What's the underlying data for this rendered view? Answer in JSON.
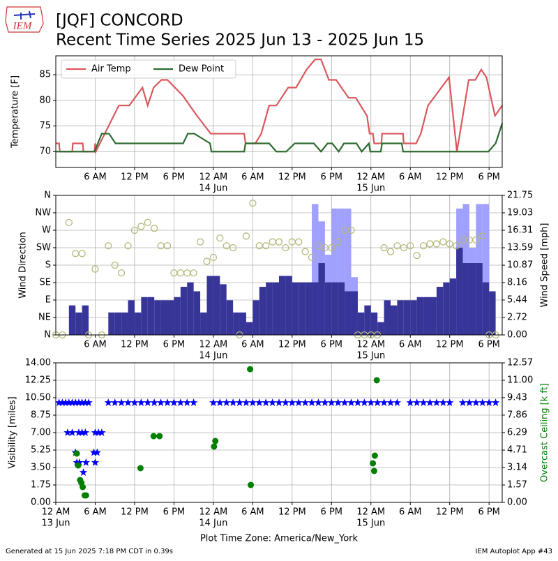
{
  "logo": "IEM",
  "title": [
    "[JQF] CONCORD",
    "Recent Time Series 2025 Jun 13 - 2025 Jun 15"
  ],
  "footer": {
    "left": "Generated at 15 Jun 2025 7:18 PM CDT in 0.39s",
    "right": "IEM Autoplot App #43"
  },
  "chart_data": [
    {
      "type": "line",
      "ylabel": "Temperature [F]",
      "grid": true,
      "legend": "upper left",
      "xlim": [
        0,
        68
      ],
      "ylim": [
        66.9,
        88.7
      ],
      "yticks": [
        70,
        75,
        80,
        85
      ],
      "xticks": [
        {
          "value": 6,
          "label": "6 AM"
        },
        {
          "value": 12,
          "label": "12 PM"
        },
        {
          "value": 18,
          "label": "6 PM"
        },
        {
          "value": 24,
          "label": "12 AM"
        },
        {
          "value": 30,
          "label": "6 AM"
        },
        {
          "value": 36,
          "label": "12 PM"
        },
        {
          "value": 42,
          "label": "6 PM"
        },
        {
          "value": 48,
          "label": "12 AM"
        },
        {
          "value": 54,
          "label": "6 AM"
        },
        {
          "value": 60,
          "label": "12 PM"
        },
        {
          "value": 66,
          "label": "6 PM"
        }
      ],
      "xdates": [
        {
          "value": 24,
          "label": "14 Jun"
        },
        {
          "value": 48,
          "label": "15 Jun"
        }
      ],
      "series": [
        {
          "name": "Air Temp",
          "type": "line",
          "axis": "y",
          "color": "#d9585c",
          "x": [
            0,
            0.5,
            0.6,
            2.5,
            2.6,
            4.1,
            4.2,
            5.9,
            6,
            6.1,
            9.6,
            11.2,
            13.2,
            14,
            14.9,
            16.1,
            17,
            19.3,
            21.5,
            23.6,
            28.7,
            28.9,
            30.4,
            31.3,
            32.5,
            33.6,
            35.4,
            36.6,
            38.2,
            39.5,
            40.4,
            41.6,
            42.7,
            44.6,
            45.7,
            47.4,
            47.8,
            48.3,
            48.5,
            49.6,
            49.7,
            52.9,
            53,
            54.9,
            55.6,
            56.7,
            59.9,
            61.1,
            62.9,
            63.9,
            64.8,
            65.6,
            66.9,
            68
          ],
          "values": [
            71.6,
            71.6,
            70,
            70,
            71.6,
            71.6,
            70,
            70,
            71.6,
            70,
            79,
            79,
            82.5,
            79,
            82.5,
            84,
            84,
            81,
            77,
            73.5,
            73.5,
            71.6,
            71.6,
            73.5,
            79,
            79,
            82.5,
            82.5,
            86,
            88,
            88,
            84,
            84,
            80.5,
            80.5,
            77,
            73.5,
            73.5,
            71.6,
            71.6,
            73.5,
            73.5,
            71.6,
            71.6,
            73.5,
            79,
            84.5,
            70,
            84,
            84,
            86,
            84.5,
            77,
            79
          ]
        },
        {
          "name": "Dew Point",
          "type": "line",
          "axis": "y",
          "color": "#2e6b30",
          "x": [
            0,
            5.9,
            7,
            8.1,
            9.1,
            19.4,
            20.1,
            21.1,
            23.5,
            23.7,
            28.7,
            28.9,
            30.2,
            32.5,
            33.6,
            35.1,
            36.4,
            39.3,
            40.4,
            41.4,
            42.1,
            43.1,
            43.9,
            45.8,
            46.6,
            47.7,
            47.9,
            49.5,
            49.7,
            52.7,
            52.9,
            65.9,
            67,
            68
          ],
          "values": [
            70,
            70,
            73.5,
            73.5,
            71.6,
            71.6,
            73.5,
            73.5,
            71.6,
            70,
            70,
            71.6,
            71.6,
            71.6,
            70,
            70,
            71.6,
            71.6,
            70,
            71.6,
            71.6,
            70,
            71.6,
            71.6,
            70,
            71.6,
            70,
            70,
            71.6,
            71.6,
            70,
            70,
            71.6,
            75.5
          ]
        }
      ]
    },
    {
      "type": "combo",
      "ylabel": "Wind Direction",
      "y2label": "Wind Speed [mph]",
      "grid": true,
      "xlim": [
        0,
        68
      ],
      "ylim": [
        0,
        360
      ],
      "yticks": [
        {
          "value": 0,
          "label": "N"
        },
        {
          "value": 45,
          "label": "NE"
        },
        {
          "value": 90,
          "label": "E"
        },
        {
          "value": 135,
          "label": "SE"
        },
        {
          "value": 180,
          "label": "S"
        },
        {
          "value": 225,
          "label": "SW"
        },
        {
          "value": 270,
          "label": "W"
        },
        {
          "value": 315,
          "label": "NW"
        },
        {
          "value": 360,
          "label": "N"
        }
      ],
      "y2lim": [
        0,
        21.75
      ],
      "y2ticks": [
        {
          "value": 0,
          "label": "0.00"
        },
        2.72,
        5.44,
        8.16,
        10.87,
        13.59,
        16.31,
        19.03,
        21.75
      ],
      "xticks": [
        {
          "value": 6,
          "label": "6 AM"
        },
        {
          "value": 12,
          "label": "12 PM"
        },
        {
          "value": 18,
          "label": "6 PM"
        },
        {
          "value": 24,
          "label": "12 AM"
        },
        {
          "value": 30,
          "label": "6 AM"
        },
        {
          "value": 36,
          "label": "12 PM"
        },
        {
          "value": 42,
          "label": "6 PM"
        },
        {
          "value": 48,
          "label": "12 AM"
        },
        {
          "value": 54,
          "label": "6 AM"
        },
        {
          "value": 60,
          "label": "12 PM"
        },
        {
          "value": 66,
          "label": "6 PM"
        }
      ],
      "xdates": [
        {
          "value": 24,
          "label": "14 Jun"
        },
        {
          "value": 48,
          "label": "15 Jun"
        }
      ],
      "x": [
        0,
        1,
        2,
        3,
        4,
        5,
        6,
        7,
        8,
        9,
        10,
        11,
        12,
        13,
        14,
        15,
        16,
        17,
        18,
        19,
        20,
        21,
        22,
        23,
        24,
        25,
        26,
        27,
        28,
        29,
        30,
        31,
        32,
        33,
        34,
        35,
        36,
        37,
        38,
        39,
        40,
        41,
        42,
        43,
        44,
        45,
        46,
        47,
        48,
        49,
        50,
        51,
        52,
        53,
        54,
        55,
        56,
        57,
        58,
        59,
        60,
        61,
        62,
        63,
        64,
        65,
        66,
        67
      ],
      "series": [
        {
          "type": "bar",
          "axis": "y2",
          "color": "#a0a0ff",
          "values": [
            null,
            null,
            null,
            null,
            null,
            null,
            null,
            null,
            null,
            null,
            null,
            null,
            null,
            null,
            null,
            null,
            null,
            null,
            null,
            null,
            null,
            null,
            null,
            null,
            null,
            null,
            null,
            null,
            null,
            null,
            null,
            null,
            null,
            null,
            null,
            null,
            null,
            null,
            null,
            20.4,
            17.7,
            12.5,
            19.7,
            19.7,
            19.7,
            9.0,
            null,
            null,
            null,
            null,
            null,
            null,
            null,
            null,
            null,
            null,
            null,
            null,
            null,
            null,
            null,
            19.7,
            20.4,
            13.6,
            20.4,
            20.4,
            null,
            null
          ]
        },
        {
          "type": "bar",
          "axis": "y2",
          "color": "#383599",
          "values": [
            0,
            0,
            4.6,
            3.5,
            4.6,
            0,
            0,
            0,
            3.5,
            3.5,
            3.5,
            5.4,
            3.5,
            5.9,
            5.9,
            5.4,
            5.4,
            5.4,
            5.9,
            7.5,
            8.2,
            6.8,
            3.5,
            9.2,
            9.2,
            7.9,
            5.4,
            3.5,
            3.5,
            2.0,
            5.4,
            7.5,
            8.2,
            8.2,
            9.2,
            9.2,
            8.2,
            8.2,
            8.2,
            8.2,
            11.2,
            8.2,
            8.2,
            8.2,
            6.8,
            6.8,
            3.5,
            4.6,
            3.5,
            2.0,
            5.4,
            4.6,
            5.4,
            5.4,
            5.4,
            5.9,
            5.9,
            5.9,
            7.5,
            8.2,
            8.8,
            13.6,
            11.2,
            11.2,
            11.2,
            8.2,
            6.8,
            0
          ]
        },
        {
          "type": "scatter",
          "marker": "hollow-circle",
          "axis": "y",
          "color": "#b5b87a",
          "values": [
            0,
            0,
            290,
            210,
            210,
            0,
            170,
            0,
            230,
            180,
            160,
            230,
            270,
            280,
            290,
            275,
            230,
            230,
            160,
            160,
            160,
            160,
            240,
            190,
            200,
            250,
            230,
            225,
            0,
            255,
            340,
            230,
            230,
            240,
            240,
            225,
            240,
            240,
            215,
            200,
            230,
            225,
            225,
            240,
            270,
            270,
            0,
            0,
            0,
            0,
            225,
            215,
            230,
            225,
            230,
            205,
            230,
            235,
            235,
            240,
            235,
            230,
            245,
            245,
            245,
            255,
            0,
            0
          ]
        }
      ]
    },
    {
      "type": "combo",
      "ylabel": "Visibility [miles]",
      "y2label": "Overcast Ceiling [k ft]",
      "y2color": "#008000",
      "grid": true,
      "xlabel": "Plot Time Zone: America/New_York",
      "xlim": [
        0,
        68
      ],
      "ylim": [
        0,
        14
      ],
      "yticks": [
        {
          "value": 0,
          "label": "0.00"
        },
        1.75,
        {
          "value": 3.5,
          "label": "3.50"
        },
        5.25,
        {
          "value": 7,
          "label": "7.00"
        },
        8.75,
        {
          "value": 10.5,
          "label": "10.50"
        },
        12.25,
        {
          "value": 14,
          "label": "14.00"
        }
      ],
      "y2lim": [
        0,
        12.57
      ],
      "y2ticks": [
        {
          "value": 0,
          "label": "0.00"
        },
        1.57,
        3.14,
        4.71,
        6.29,
        7.86,
        9.43,
        {
          "value": 11,
          "label": "11.00"
        },
        12.57
      ],
      "xticks": [
        {
          "value": 0,
          "label": "12 AM"
        },
        {
          "value": 6,
          "label": "6 AM"
        },
        {
          "value": 12,
          "label": "12 PM"
        },
        {
          "value": 18,
          "label": "6 PM"
        },
        {
          "value": 24,
          "label": "12 AM"
        },
        {
          "value": 30,
          "label": "6 AM"
        },
        {
          "value": 36,
          "label": "12 PM"
        },
        {
          "value": 42,
          "label": "6 PM"
        },
        {
          "value": 48,
          "label": "12 AM"
        },
        {
          "value": 54,
          "label": "6 AM"
        },
        {
          "value": 60,
          "label": "12 PM"
        },
        {
          "value": 66,
          "label": "6 PM"
        }
      ],
      "xdates": [
        {
          "value": 0,
          "label": "13 Jun"
        },
        {
          "value": 24,
          "label": "14 Jun"
        },
        {
          "value": 48,
          "label": "15 Jun"
        }
      ],
      "series": [
        {
          "type": "scatter",
          "marker": "star",
          "axis": "y",
          "color": "#0000ff",
          "x": [
            0.5,
            1,
            1.5,
            2,
            2.5,
            3,
            3.5,
            4,
            4.5,
            5,
            1.8,
            2.5,
            3.5,
            4,
            4.5,
            6,
            6.5,
            7,
            3,
            3.2,
            3.6,
            4.2,
            4.6,
            5.8,
            6.3,
            6,
            8,
            9,
            10,
            11,
            12,
            13,
            14,
            15,
            16,
            17,
            18,
            19,
            20,
            21,
            24,
            25,
            26,
            27,
            28,
            29,
            30,
            31,
            32,
            33,
            34,
            35,
            36,
            37,
            38,
            39,
            40,
            41,
            42,
            43,
            44,
            45,
            46,
            47,
            48,
            49,
            50,
            51,
            52,
            54,
            55,
            56,
            57,
            58,
            59,
            60,
            62,
            63,
            64,
            65,
            66,
            67
          ],
          "values": [
            10,
            10,
            10,
            10,
            10,
            10,
            10,
            10,
            10,
            10,
            7,
            7,
            7,
            7,
            7,
            7,
            7,
            7,
            5,
            4,
            4,
            3,
            4,
            5,
            5,
            4,
            10,
            10,
            10,
            10,
            10,
            10,
            10,
            10,
            10,
            10,
            10,
            10,
            10,
            10,
            10,
            10,
            10,
            10,
            10,
            10,
            10,
            10,
            10,
            10,
            10,
            10,
            10,
            10,
            10,
            10,
            10,
            10,
            10,
            10,
            10,
            10,
            10,
            10,
            10,
            10,
            10,
            10,
            10,
            10,
            10,
            10,
            10,
            10,
            10,
            10,
            10,
            10,
            10,
            10,
            10,
            10
          ]
        },
        {
          "type": "scatter",
          "marker": "dot",
          "axis": "y2",
          "color": "#008000",
          "x": [
            3.2,
            3.4,
            3.7,
            3.9,
            4.1,
            4.4,
            4.6,
            12.9,
            14.9,
            15.8,
            24.1,
            24.3,
            29.7,
            29.6,
            48.3,
            48.6,
            48.5,
            48.9
          ],
          "values": [
            4.4,
            3.33,
            2.01,
            1.76,
            1.38,
            0.63,
            0.63,
            3.08,
            5.97,
            5.97,
            5.03,
            5.53,
            1.57,
            12.0,
            3.52,
            4.21,
            2.83,
            11.0
          ]
        }
      ]
    }
  ]
}
